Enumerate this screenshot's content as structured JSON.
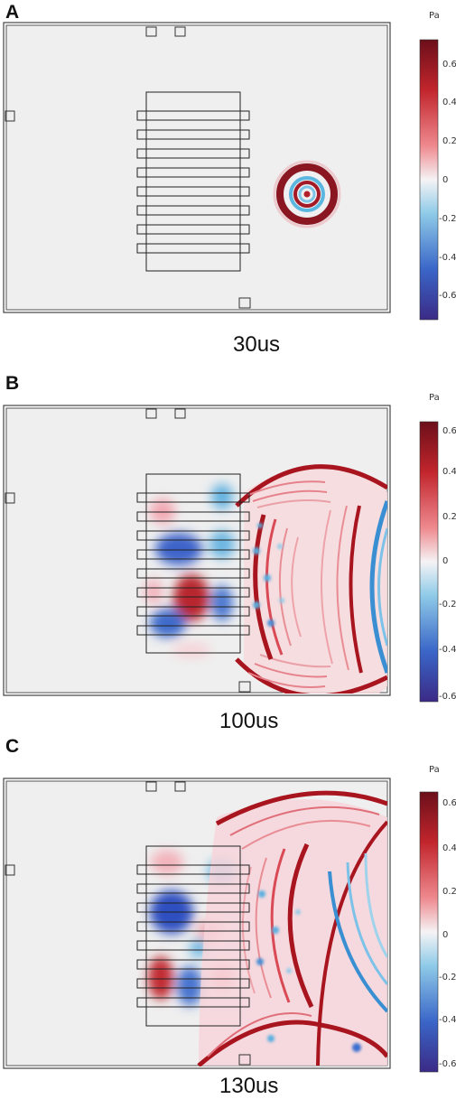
{
  "panels": [
    {
      "label": "A",
      "time": "30us",
      "colorbar": {
        "unit": "Pa",
        "ticks": [
          "0.6",
          "0.4",
          "0.2",
          "0",
          "-0.2",
          "-0.4",
          "-0.6"
        ]
      }
    },
    {
      "label": "B",
      "time": "100us",
      "colorbar": {
        "unit": "Pa",
        "ticks": [
          "0.6",
          "0.4",
          "0.2",
          "0",
          "-0.2",
          "-0.4",
          "-0.6"
        ]
      }
    },
    {
      "label": "C",
      "time": "130us",
      "colorbar": {
        "unit": "Pa",
        "ticks": [
          "0.6",
          "0.4",
          "0.2",
          "0",
          "-0.2",
          "-0.4",
          "-0.6"
        ]
      }
    }
  ],
  "colors": {
    "positive": "#7f0d1d",
    "negative": "#3a2f8f",
    "background": "#efefef"
  }
}
